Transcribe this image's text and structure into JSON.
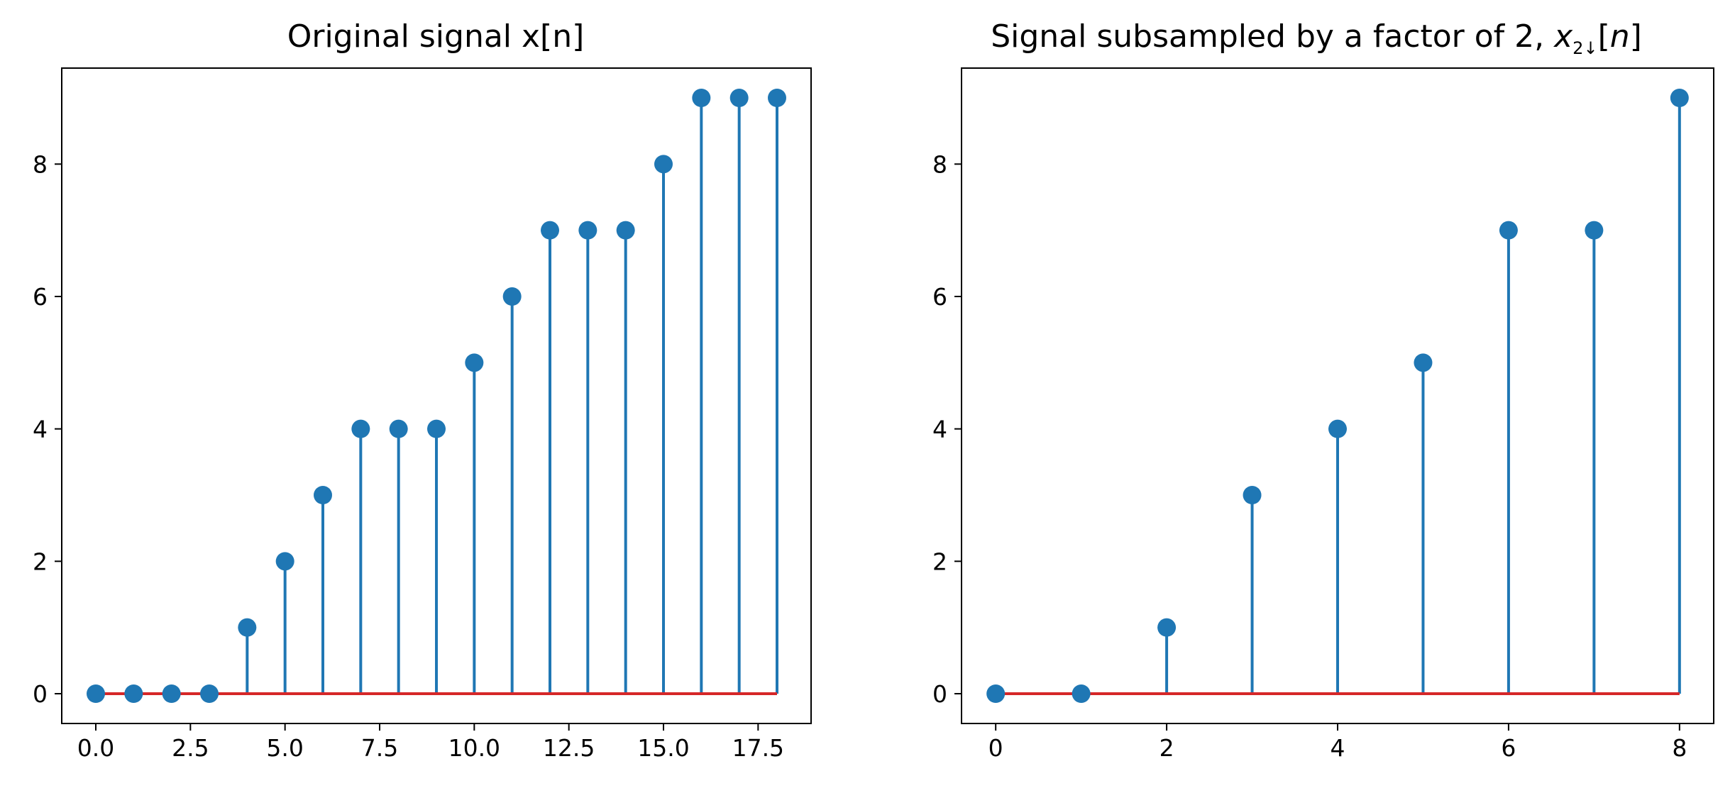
{
  "chart_data": [
    {
      "type": "stem",
      "title": "Original signal x[n]",
      "x": [
        0,
        1,
        2,
        3,
        4,
        5,
        6,
        7,
        8,
        9,
        10,
        11,
        12,
        13,
        14,
        15,
        16,
        17,
        18
      ],
      "y": [
        0,
        0,
        0,
        0,
        1,
        2,
        3,
        4,
        4,
        4,
        5,
        6,
        7,
        7,
        7,
        8,
        9,
        9,
        9
      ],
      "xticks": [
        "0.0",
        "2.5",
        "5.0",
        "7.5",
        "10.0",
        "12.5",
        "15.0",
        "17.5"
      ],
      "yticks": [
        "0",
        "2",
        "4",
        "6",
        "8"
      ],
      "xlim": [
        -0.9,
        18.9
      ],
      "ylim": [
        -0.45,
        9.45
      ],
      "grid": false,
      "colors": {
        "stem": "#1f77b4",
        "marker": "#1f77b4",
        "baseline": "#d62728"
      }
    },
    {
      "type": "stem",
      "title_parts": {
        "text": "Signal subsampled by a factor of 2, ",
        "math_base": "x",
        "math_sub": "2↓",
        "math_arg": "[n]"
      },
      "x": [
        0,
        1,
        2,
        3,
        4,
        5,
        6,
        7,
        8
      ],
      "y": [
        0,
        0,
        1,
        3,
        4,
        5,
        7,
        7,
        9
      ],
      "xticks": [
        "0",
        "2",
        "4",
        "6",
        "8"
      ],
      "yticks": [
        "0",
        "2",
        "4",
        "6",
        "8"
      ],
      "xlim": [
        -0.4,
        8.4
      ],
      "ylim": [
        -0.45,
        9.45
      ],
      "grid": false,
      "colors": {
        "stem": "#1f77b4",
        "marker": "#1f77b4",
        "baseline": "#d62728"
      }
    }
  ]
}
